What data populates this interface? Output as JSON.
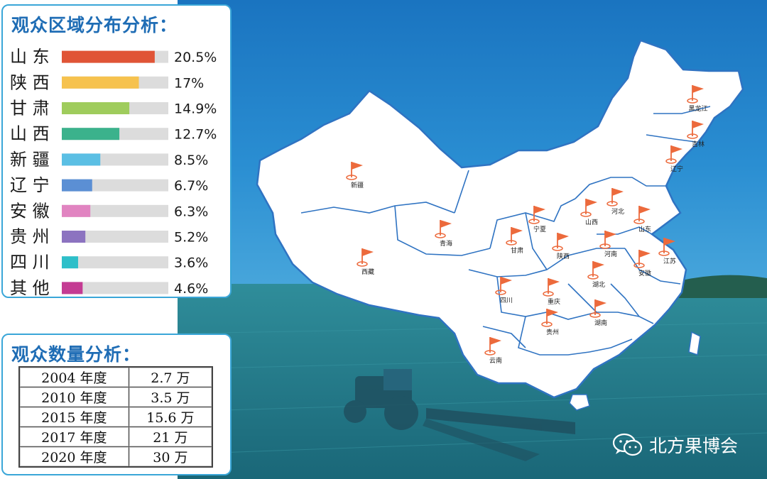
{
  "region_panel": {
    "title": "观众区域分布分析："
  },
  "count_panel": {
    "title": "观众数量分析："
  },
  "chart_data": {
    "type": "bar",
    "orientation": "horizontal",
    "title": "观众区域分布分析：",
    "categories": [
      "山 东",
      "陕 西",
      "甘 肃",
      "山 西",
      "新 疆",
      "辽 宁",
      "安 徽",
      "贵 州",
      "四 川",
      "其 他"
    ],
    "values": [
      20.5,
      17,
      14.9,
      12.7,
      8.5,
      6.7,
      6.3,
      5.2,
      3.6,
      4.6
    ],
    "value_labels": [
      "20.5%",
      "17%",
      "14.9%",
      "12.7%",
      "8.5%",
      "6.7%",
      "6.3%",
      "5.2%",
      "3.6%",
      "4.6%"
    ],
    "colors": [
      "#e05436",
      "#f6c24e",
      "#9fcc5c",
      "#3bb28c",
      "#5bbfe4",
      "#5b8fd4",
      "#e184c1",
      "#8c73c0",
      "#2ebfc9",
      "#c43b93"
    ],
    "track_color": "#dcdcdc",
    "xlim": [
      0,
      23.5
    ]
  },
  "count_table": {
    "rows": [
      {
        "year": "2004 年度",
        "count": "2.7 万"
      },
      {
        "year": "2010 年度",
        "count": "3.5 万"
      },
      {
        "year": "2015 年度",
        "count": "15.6 万"
      },
      {
        "year": "2017 年度",
        "count": "21 万"
      },
      {
        "year": "2020 年度",
        "count": "30 万"
      }
    ]
  },
  "map": {
    "marker_color": "#ec6a3c",
    "labels": [
      "黑龙江",
      "吉林",
      "辽宁",
      "新疆",
      "河北",
      "山东",
      "山西",
      "宁夏",
      "青海",
      "甘肃",
      "陕西",
      "河南",
      "江苏",
      "西藏",
      "安徽",
      "湖北",
      "四川",
      "重庆",
      "湖南",
      "贵州",
      "云南"
    ]
  },
  "brand": {
    "text": "北方果博会",
    "icon": "wechat-icon"
  }
}
